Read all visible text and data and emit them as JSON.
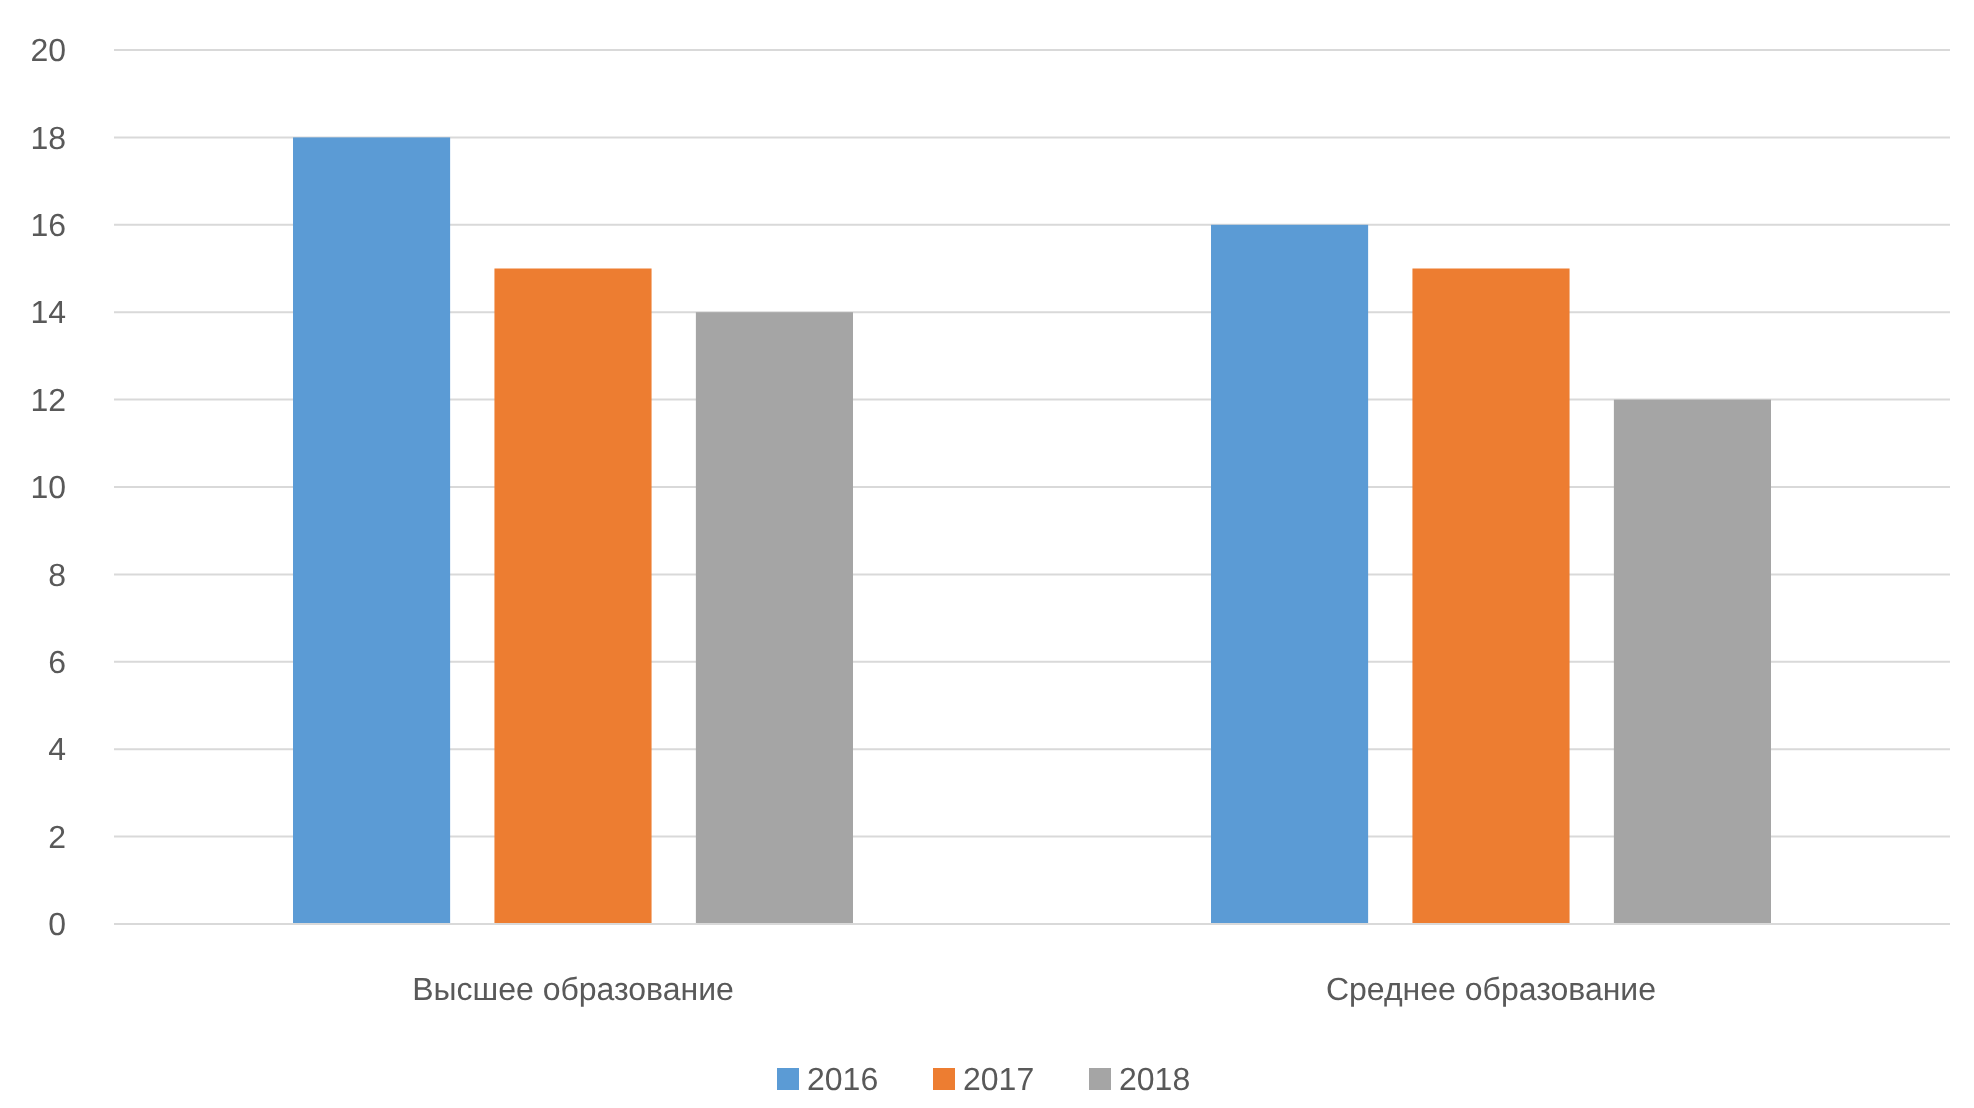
{
  "chart_data": {
    "type": "bar",
    "categories": [
      "Высшее образование",
      "Среднее образование"
    ],
    "series": [
      {
        "name": "2016",
        "color": "#5b9bd5",
        "values": [
          18,
          16
        ]
      },
      {
        "name": "2017",
        "color": "#ed7d31",
        "values": [
          15,
          15
        ]
      },
      {
        "name": "2018",
        "color": "#a5a5a5",
        "values": [
          14,
          12
        ]
      }
    ],
    "ylim": [
      0,
      20
    ],
    "yticks": [
      0,
      2,
      4,
      6,
      8,
      10,
      12,
      14,
      16,
      18,
      20
    ],
    "grid": "y",
    "legend": "bottom"
  }
}
